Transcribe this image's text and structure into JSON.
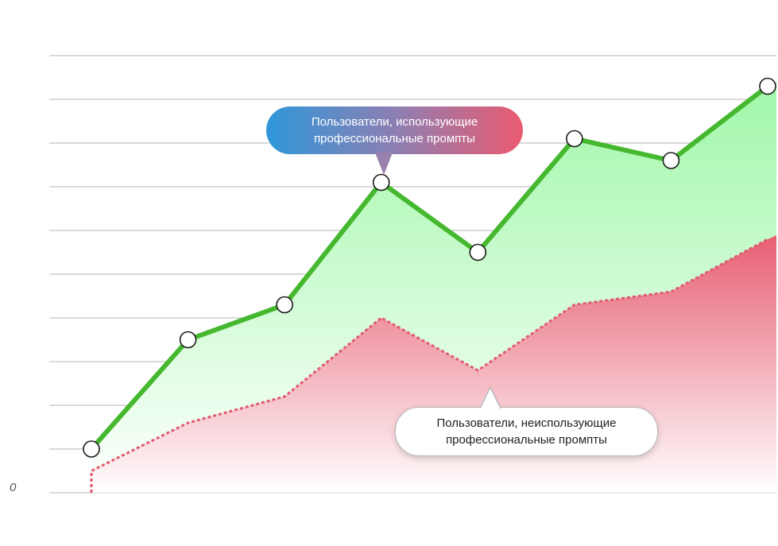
{
  "chart_data": {
    "type": "area",
    "title": "",
    "xlabel": "",
    "ylabel": "",
    "x": [
      1,
      2,
      3,
      4,
      5,
      6,
      7,
      8
    ],
    "ylim": [
      0,
      10
    ],
    "y_tick_labels": [
      "0"
    ],
    "grid": true,
    "series": [
      {
        "name": "Пользователи, использующие профессиональные промпты",
        "values": [
          1.0,
          3.5,
          4.3,
          7.1,
          5.5,
          8.1,
          7.6,
          9.3
        ],
        "color": "#46b82f",
        "fill_top": "#9cf7a5",
        "fill_bottom": "#ffffff",
        "style": "solid",
        "markers": true
      },
      {
        "name": "Пользователи, неиспользующие профессиональные промпты",
        "values": [
          0.5,
          1.6,
          2.2,
          4.0,
          2.8,
          4.3,
          4.6,
          5.8
        ],
        "color": "#e05a6f",
        "fill_top": "#e75f73",
        "fill_bottom": "#ffffff",
        "style": "dotted",
        "markers": false
      }
    ]
  },
  "callouts": {
    "pro": "Пользователи, использующие профессиональные промпты",
    "nonpro": "Пользователи, неиспользующие профессиональные промпты"
  }
}
